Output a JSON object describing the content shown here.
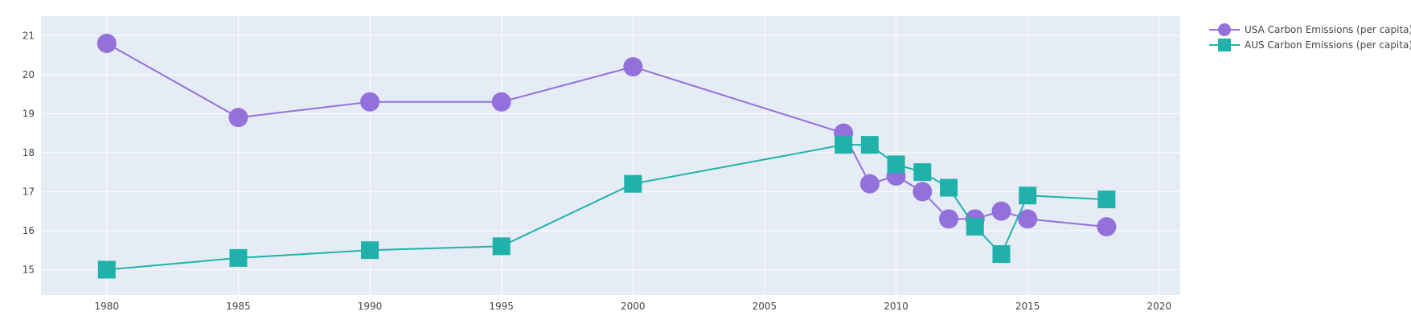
{
  "chart_data": {
    "type": "line",
    "title": "",
    "xlabel": "",
    "ylabel": "",
    "xlim": [
      1977.5,
      2020.8
    ],
    "ylim": [
      14.35,
      21.5
    ],
    "x_ticks": [
      1980,
      1985,
      1990,
      1995,
      2000,
      2005,
      2010,
      2015,
      2020
    ],
    "y_ticks": [
      15,
      16,
      17,
      18,
      19,
      20,
      21
    ],
    "grid": true,
    "legend_position": "top-right",
    "plot_background": "#e5ecf6",
    "series": [
      {
        "name": "USA Carbon Emissions (per capita)",
        "color": "#9370db",
        "marker": "circle",
        "x": [
          1980,
          1985,
          1990,
          1995,
          2000,
          2008,
          2009,
          2010,
          2011,
          2012,
          2013,
          2014,
          2015,
          2018
        ],
        "y": [
          20.8,
          18.9,
          19.3,
          19.3,
          20.2,
          18.5,
          17.2,
          17.4,
          17.0,
          16.3,
          16.3,
          16.5,
          16.3,
          16.1
        ]
      },
      {
        "name": "AUS Carbon Emissions (per capita)",
        "color": "#20b2aa",
        "marker": "square",
        "x": [
          1980,
          1985,
          1990,
          1995,
          2000,
          2008,
          2009,
          2010,
          2011,
          2012,
          2013,
          2014,
          2015,
          2018
        ],
        "y": [
          15.0,
          15.3,
          15.5,
          15.6,
          17.2,
          18.2,
          18.2,
          17.7,
          17.5,
          17.1,
          16.1,
          15.4,
          16.9,
          16.8
        ]
      }
    ]
  }
}
